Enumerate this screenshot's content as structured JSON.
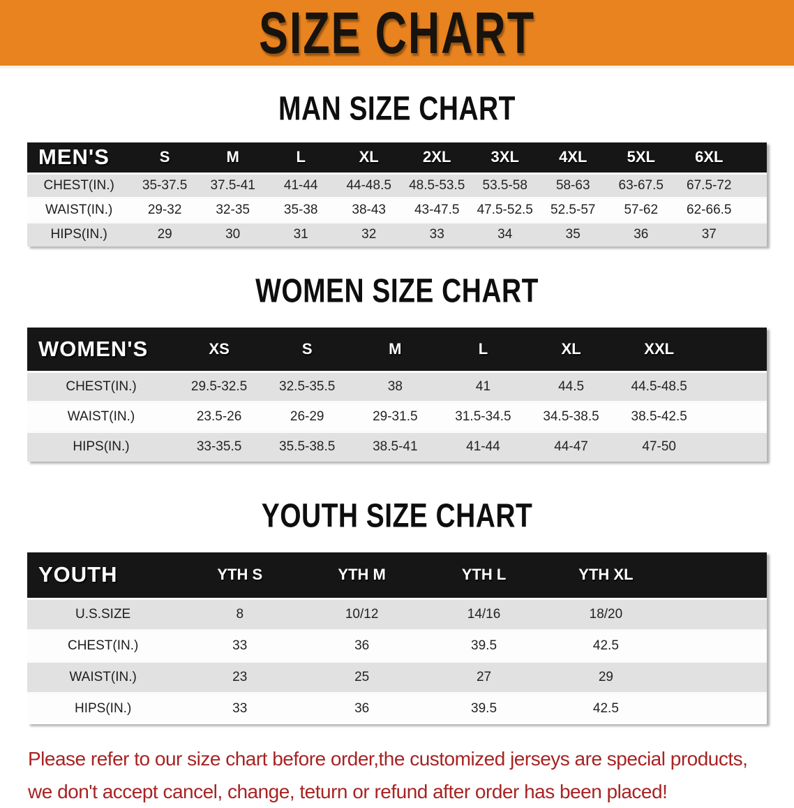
{
  "banner": {
    "title": "SIZE CHART"
  },
  "colors": {
    "banner_bg": "#E8831F",
    "header_bar_bg": "#161616",
    "row_gray": "#e1e1e1",
    "row_white": "#fdfdfd",
    "note_red": "#A82323"
  },
  "tables": [
    {
      "title": "MAN SIZE CHART",
      "corner_label": "MEN'S",
      "columns": [
        "S",
        "M",
        "L",
        "XL",
        "2XL",
        "3XL",
        "4XL",
        "5XL",
        "6XL"
      ],
      "rows": [
        {
          "label": "CHEST(IN.)",
          "values": [
            "35-37.5",
            "37.5-41",
            "41-44",
            "44-48.5",
            "48.5-53.5",
            "53.5-58",
            "58-63",
            "63-67.5",
            "67.5-72"
          ]
        },
        {
          "label": "WAIST(IN.)",
          "values": [
            "29-32",
            "32-35",
            "35-38",
            "38-43",
            "43-47.5",
            "47.5-52.5",
            "52.5-57",
            "57-62",
            "62-66.5"
          ]
        },
        {
          "label": "HIPS(IN.)",
          "values": [
            "29",
            "30",
            "31",
            "32",
            "33",
            "34",
            "35",
            "36",
            "37"
          ]
        }
      ]
    },
    {
      "title": "WOMEN SIZE CHART",
      "corner_label": "WOMEN'S",
      "columns": [
        "XS",
        "S",
        "M",
        "L",
        "XL",
        "XXL"
      ],
      "rows": [
        {
          "label": "CHEST(IN.)",
          "values": [
            "29.5-32.5",
            "32.5-35.5",
            "38",
            "41",
            "44.5",
            "44.5-48.5"
          ]
        },
        {
          "label": "WAIST(IN.)",
          "values": [
            "23.5-26",
            "26-29",
            "29-31.5",
            "31.5-34.5",
            "34.5-38.5",
            "38.5-42.5"
          ]
        },
        {
          "label": "HIPS(IN.)",
          "values": [
            "33-35.5",
            "35.5-38.5",
            "38.5-41",
            "41-44",
            "44-47",
            "47-50"
          ]
        }
      ]
    },
    {
      "title": "YOUTH SIZE CHART",
      "corner_label": "YOUTH",
      "columns": [
        "YTH S",
        "YTH M",
        "YTH L",
        "YTH XL"
      ],
      "rows": [
        {
          "label": "U.S.SIZE",
          "values": [
            "8",
            "10/12",
            "14/16",
            "18/20"
          ]
        },
        {
          "label": "CHEST(IN.)",
          "values": [
            "33",
            "36",
            "39.5",
            "42.5"
          ]
        },
        {
          "label": "WAIST(IN.)",
          "values": [
            "23",
            "25",
            "27",
            "29"
          ]
        },
        {
          "label": "HIPS(IN.)",
          "values": [
            "33",
            "36",
            "39.5",
            "42.5"
          ]
        }
      ]
    }
  ],
  "note": {
    "line1": "Please refer to our size chart before order,the customized jerseys are special products,",
    "line2": "we don't accept cancel, change, teturn or refund after order has been placed!"
  }
}
